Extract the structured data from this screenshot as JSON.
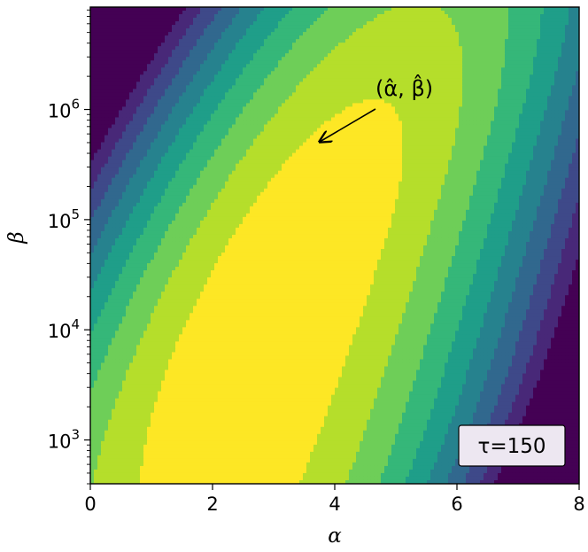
{
  "chart_data": {
    "type": "heatmap",
    "subtype": "filled-contour",
    "title": "",
    "xlabel": "α",
    "ylabel": "β",
    "x_ticks": [
      "0",
      "2",
      "4",
      "6",
      "8"
    ],
    "y_ticks": [
      {
        "base": "10",
        "exp": "3"
      },
      {
        "base": "10",
        "exp": "4"
      },
      {
        "base": "10",
        "exp": "5"
      },
      {
        "base": "10",
        "exp": "6"
      }
    ],
    "xlim": [
      0,
      8
    ],
    "ylim": [
      400,
      8500000
    ],
    "y_scale": "log",
    "colormap": "viridis",
    "levels": 10,
    "maximum": {
      "alpha": 3.7,
      "beta": 500000
    },
    "annotation": "(α̂, β̂)",
    "box_label": "τ=150",
    "level_colors": [
      "#440154",
      "#482878",
      "#3e4989",
      "#31688e",
      "#26828e",
      "#1f9e89",
      "#35b779",
      "#6ece58",
      "#b5de2b",
      "#fde725"
    ],
    "border_color": "#000000",
    "label_box_background": "#ede7f1"
  }
}
